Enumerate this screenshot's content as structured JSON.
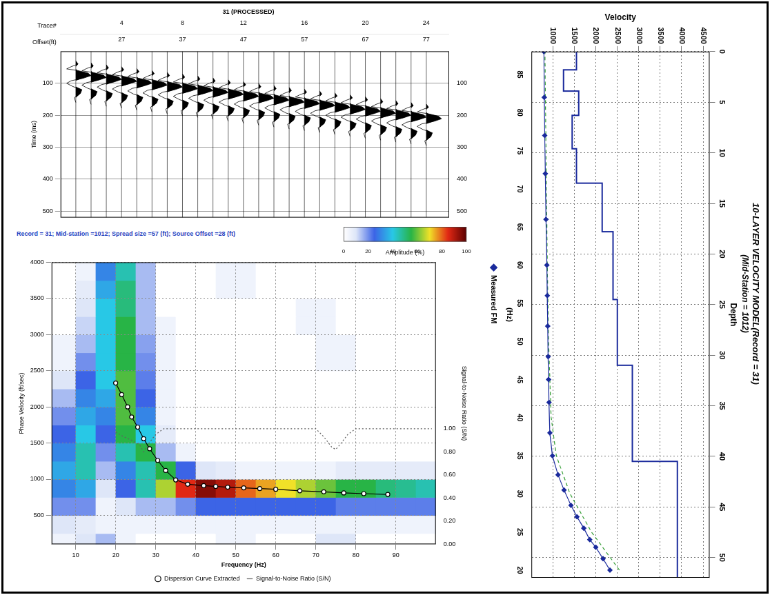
{
  "chart_data": [
    {
      "type": "wiggle",
      "title": "31 (PROCESSED)",
      "xlabel": "Trace#",
      "x2label": "Offset(ft)",
      "ylabel": "Time (ms)",
      "xlim": [
        0,
        25.5
      ],
      "xticks": [
        4,
        8,
        12,
        16,
        20,
        24
      ],
      "x2lim": [
        17,
        80.75
      ],
      "x2ticks": [
        27,
        37,
        47,
        57,
        67,
        77
      ],
      "ylim": [
        520,
        0
      ],
      "yticks": [
        100,
        200,
        300,
        400,
        500
      ],
      "grid": true,
      "color": "#000000",
      "traces": [
        1,
        2,
        3,
        4,
        5,
        6,
        7,
        8,
        9,
        10,
        11,
        12,
        13,
        14,
        15,
        16,
        17,
        18,
        19,
        20,
        21,
        22,
        23,
        24
      ],
      "arrivals": [
        60,
        66,
        72,
        78,
        84,
        90,
        96,
        101,
        107,
        113,
        119,
        125,
        131,
        137,
        143,
        148,
        154,
        160,
        166,
        172,
        178,
        184,
        190,
        195
      ],
      "wavelet": {
        "t": [
          -30,
          -20,
          -12,
          -5,
          0,
          8,
          16,
          24,
          32,
          40,
          50,
          60,
          72,
          85,
          100
        ],
        "a": [
          0,
          0.15,
          -0.3,
          -0.6,
          0.1,
          0.8,
          1.0,
          0.5,
          -0.3,
          -0.6,
          -0.2,
          0.4,
          0.3,
          -0.1,
          0
        ]
      }
    },
    {
      "type": "heatmap",
      "title": "Record = 31; Mid-station =1012; Spread size =57 (ft); Source Offset =28 (ft)",
      "xlabel": "Frequency (Hz)",
      "ylabel": "Phase Velocity (ft/sec)",
      "y2label": "Signal-to-Noise Ratio (S/N)",
      "xlim": [
        4,
        100
      ],
      "xticks": [
        10,
        20,
        30,
        40,
        50,
        60,
        70,
        80,
        90
      ],
      "ylim": [
        100,
        4000
      ],
      "yticks": [
        500,
        1000,
        1500,
        2000,
        2500,
        3000,
        3500,
        4000
      ],
      "y2lim": [
        0,
        2.44
      ],
      "y2ticks": [
        {
          "value": 0,
          "label": "0.00"
        },
        {
          "value": 0.2,
          "label": "0.20"
        },
        {
          "value": 0.4,
          "label": "0.40"
        },
        {
          "value": 0.6,
          "label": "0.60"
        },
        {
          "value": 0.8,
          "label": "0.80"
        },
        {
          "value": 1,
          "label": "1.00"
        }
      ],
      "grid": true,
      "legend": "bottom",
      "colorbar": {
        "label": "Amplitude (%)",
        "range": [
          0,
          100
        ],
        "ticks": [
          0,
          20,
          40,
          60,
          80,
          100
        ]
      },
      "cells": {
        "x_bins": [
          4,
          10,
          15,
          20,
          25,
          30,
          35,
          40,
          45,
          50,
          55,
          60,
          65,
          70,
          75,
          80,
          85,
          90,
          95,
          100
        ],
        "y_bins": [
          0,
          250,
          500,
          750,
          1000,
          1250,
          1500,
          1750,
          2000,
          2250,
          2500,
          2750,
          3000,
          3250,
          3500,
          3750,
          4000
        ],
        "values": [
          [
            5,
            10,
            15,
            5,
            0,
            0,
            0,
            0,
            5,
            5,
            0,
            0,
            0,
            10,
            10,
            0,
            0,
            0,
            0
          ],
          [
            10,
            8,
            5,
            5,
            5,
            5,
            5,
            5,
            5,
            5,
            5,
            5,
            5,
            5,
            5,
            5,
            5,
            5,
            5
          ],
          [
            20,
            20,
            5,
            10,
            15,
            15,
            20,
            25,
            25,
            25,
            25,
            25,
            25,
            25,
            22,
            22,
            22,
            22,
            22
          ],
          [
            30,
            35,
            10,
            25,
            45,
            65,
            85,
            95,
            90,
            80,
            75,
            70,
            65,
            60,
            55,
            55,
            50,
            48,
            45
          ],
          [
            35,
            45,
            15,
            30,
            45,
            55,
            25,
            10,
            8,
            5,
            5,
            5,
            5,
            5,
            8,
            8,
            8,
            8,
            8
          ],
          [
            30,
            45,
            20,
            45,
            55,
            15,
            5,
            0,
            0,
            0,
            0,
            0,
            0,
            0,
            0,
            0,
            0,
            0,
            0
          ],
          [
            25,
            40,
            25,
            55,
            40,
            8,
            0,
            0,
            0,
            0,
            0,
            0,
            0,
            0,
            0,
            0,
            0,
            0,
            0
          ],
          [
            20,
            35,
            30,
            58,
            30,
            5,
            0,
            0,
            0,
            0,
            0,
            0,
            0,
            0,
            0,
            0,
            0,
            0,
            0
          ],
          [
            15,
            30,
            35,
            58,
            25,
            5,
            0,
            0,
            0,
            0,
            0,
            0,
            0,
            0,
            0,
            0,
            0,
            0,
            0
          ],
          [
            10,
            25,
            40,
            58,
            22,
            5,
            0,
            0,
            0,
            0,
            0,
            0,
            0,
            0,
            0,
            0,
            0,
            0,
            0
          ],
          [
            5,
            20,
            40,
            55,
            20,
            5,
            0,
            0,
            0,
            0,
            0,
            0,
            0,
            5,
            5,
            0,
            0,
            0,
            0
          ],
          [
            5,
            15,
            40,
            55,
            18,
            5,
            0,
            0,
            0,
            0,
            0,
            0,
            0,
            5,
            5,
            0,
            0,
            0,
            0
          ],
          [
            0,
            12,
            40,
            55,
            15,
            5,
            0,
            0,
            0,
            0,
            0,
            0,
            5,
            5,
            0,
            0,
            0,
            0,
            0
          ],
          [
            0,
            10,
            40,
            50,
            15,
            0,
            0,
            0,
            0,
            0,
            0,
            0,
            5,
            5,
            0,
            0,
            0,
            0,
            0
          ],
          [
            0,
            8,
            35,
            50,
            15,
            0,
            0,
            0,
            5,
            5,
            0,
            0,
            0,
            0,
            0,
            0,
            0,
            0,
            0
          ],
          [
            0,
            5,
            30,
            45,
            15,
            0,
            0,
            0,
            5,
            5,
            0,
            0,
            0,
            0,
            0,
            0,
            0,
            0,
            0
          ]
        ]
      },
      "series": [
        {
          "name": "Dispersion Curve Extracted",
          "color": "#000000",
          "marker": "circle",
          "x": [
            20,
            21.5,
            23,
            24,
            25.5,
            27,
            28.5,
            30.5,
            32.5,
            35,
            38,
            42,
            45,
            48,
            52,
            56,
            60,
            66,
            72,
            77,
            82,
            88
          ],
          "values": [
            2330,
            2170,
            2000,
            1860,
            1720,
            1560,
            1420,
            1260,
            1120,
            990,
            930,
            910,
            900,
            890,
            880,
            870,
            860,
            840,
            825,
            810,
            800,
            790
          ]
        },
        {
          "name": "Signal-to-Noise Ratio (S/N)",
          "color": "#606060",
          "line_style": "dotted",
          "axis": "y2",
          "x": [
            20,
            22,
            24,
            26,
            27,
            28,
            30,
            32,
            40,
            50,
            60,
            70,
            72,
            74,
            75,
            76,
            78,
            80,
            90,
            99
          ],
          "values": [
            0.97,
            0.93,
            0.9,
            0.86,
            0.8,
            0.86,
            0.95,
            1.0,
            1.0,
            1.0,
            1.0,
            1.0,
            0.93,
            0.84,
            0.82,
            0.86,
            0.95,
            1.0,
            1.0,
            1.0
          ]
        }
      ]
    },
    {
      "type": "line",
      "title": "10-LAYER VELOCITY MODEL(Record = 31)",
      "subtitle": "(Mid-Station = 1012)",
      "xlabel": "Depth",
      "ylabel": "Velocity",
      "x2label": "(Hz)",
      "xlim": [
        0,
        52
      ],
      "xticks": [
        0,
        5,
        10,
        15,
        20,
        25,
        30,
        35,
        40,
        45,
        50
      ],
      "x2lim": [
        88,
        19
      ],
      "x2ticks": [
        85,
        80,
        75,
        70,
        65,
        60,
        55,
        50,
        45,
        40,
        35,
        30,
        25,
        20
      ],
      "ylim": [
        500,
        4650
      ],
      "yticks": [
        1000,
        1500,
        2000,
        2500,
        3000,
        3500,
        4000,
        4500
      ],
      "grid": true,
      "legend": "bottom",
      "series": [
        {
          "type": "step",
          "color": "#1a2a9c",
          "layer_bounds": [
            0,
            1.8,
            3.9,
            6.3,
            9.6,
            13,
            17.8,
            24.5,
            31,
            40.5,
            52
          ],
          "values": [
            1550,
            1250,
            1600,
            1450,
            1550,
            2150,
            2400,
            2500,
            2850,
            3900
          ]
        },
        {
          "name": "Measured FM",
          "color": "#1a2a9c",
          "marker": "diamond",
          "axis": "x2",
          "x": [
            20,
            21.5,
            23,
            24,
            25.5,
            27,
            28.5,
            30.5,
            32.5,
            35,
            38,
            42,
            45,
            48,
            52,
            56,
            60,
            66,
            72,
            77,
            82,
            88
          ],
          "values": [
            2330,
            2170,
            2000,
            1860,
            1720,
            1560,
            1420,
            1260,
            1120,
            990,
            930,
            910,
            900,
            890,
            880,
            870,
            860,
            840,
            825,
            810,
            800,
            790
          ]
        },
        {
          "color": "#3aa03a",
          "line_style": "dashed",
          "axis": "x2",
          "x": [
            20,
            25,
            30,
            35,
            40,
            50,
            60,
            70,
            80,
            88
          ],
          "values": [
            2550,
            1900,
            1400,
            1080,
            960,
            900,
            870,
            850,
            830,
            815
          ]
        }
      ]
    }
  ]
}
